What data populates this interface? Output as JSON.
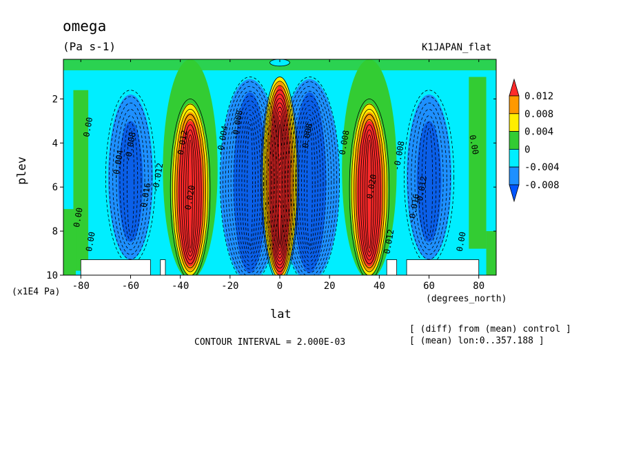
{
  "header": {
    "title": "omega",
    "units": "(Pa s-1)",
    "experiment": "K1JAPAN_flat"
  },
  "footer": {
    "contour_interval": "CONTOUR INTERVAL = 2.000E-03",
    "note1": "[ (diff) from (mean) control ]",
    "note2": "[ (mean) lon:0..357.188 ]"
  },
  "chart_data": {
    "type": "heatmap",
    "title": "omega",
    "units": "(Pa s-1)",
    "xlabel": "lat",
    "xunit": "(degrees_north)",
    "ylabel": "plev",
    "yunit": "(x1E4 Pa)",
    "xlim": [
      -87,
      87
    ],
    "ylim": [
      10,
      0.2
    ],
    "xticks": [
      -80,
      -60,
      -40,
      -20,
      0,
      20,
      40,
      60,
      80
    ],
    "yticks": [
      2,
      4,
      6,
      8,
      10
    ],
    "contour_interval": 0.002,
    "legend": {
      "placement": "right",
      "levels": [
        "0.012",
        "0.008",
        "0.004",
        "0",
        "-0.004",
        "-0.008"
      ],
      "colors": [
        "#ff2a2a",
        "#ff9900",
        "#ffee00",
        "#33cc33",
        "#00eeff",
        "#1e90ff",
        "#0055ff"
      ]
    },
    "colors": {
      "background": "#00eeff",
      "positive_weak": "#33cc33",
      "negative_weak": "#1e90ff",
      "negative_mid": "#0a5fe8",
      "positive_mid": "#ffee00",
      "positive_high": "#ff9900",
      "positive_max": "#ff2a2a"
    },
    "features": [
      {
        "kind": "max",
        "lat": 0,
        "plev_top": 1.5,
        "plev_bottom": 9.5,
        "sign": "positive"
      },
      {
        "kind": "max",
        "lat": -36,
        "plev_top": 2.5,
        "plev_bottom": 9.6,
        "sign": "positive"
      },
      {
        "kind": "max",
        "lat": 36,
        "plev_top": 2.5,
        "plev_bottom": 9.6,
        "sign": "positive"
      },
      {
        "kind": "min",
        "lat": -60,
        "plev_top": 2.0,
        "plev_bottom": 9.0,
        "sign": "negative"
      },
      {
        "kind": "min",
        "lat": 60,
        "plev_top": 2.0,
        "plev_bottom": 9.0,
        "sign": "negative"
      },
      {
        "kind": "min",
        "lat": -12,
        "plev_top": 1.5,
        "plev_bottom": 9.8,
        "sign": "negative"
      },
      {
        "kind": "min",
        "lat": 12,
        "plev_top": 1.5,
        "plev_bottom": 9.8,
        "sign": "negative"
      }
    ],
    "masked_regions": [
      {
        "lat_from": -80,
        "lat_to": -52,
        "plev_from": 9.3,
        "plev_to": 10
      },
      {
        "lat_from": -48,
        "lat_to": -46,
        "plev_from": 9.3,
        "plev_to": 10
      },
      {
        "lat_from": 43,
        "lat_to": 47,
        "plev_from": 9.3,
        "plev_to": 10
      },
      {
        "lat_from": 51,
        "lat_to": 80,
        "plev_from": 9.3,
        "plev_to": 10
      }
    ],
    "contour_labels": [
      {
        "text": "0.00",
        "lat": -76,
        "plev": 3.3,
        "rot": -80
      },
      {
        "text": "0.00",
        "lat": -80,
        "plev": 7.4,
        "rot": -80
      },
      {
        "text": "0.00",
        "lat": -75,
        "plev": 8.5,
        "rot": -80
      },
      {
        "text": "-0.004",
        "lat": -64,
        "plev": 5.0,
        "rot": -80
      },
      {
        "text": "-0.008",
        "lat": -59,
        "plev": 4.2,
        "rot": -80
      },
      {
        "text": "-0.016",
        "lat": -53,
        "plev": 6.5,
        "rot": -80
      },
      {
        "text": "-0.012",
        "lat": -48,
        "plev": 5.6,
        "rot": -80
      },
      {
        "text": "0.012",
        "lat": -38,
        "plev": 4.0,
        "rot": -80
      },
      {
        "text": "0.020",
        "lat": -35,
        "plev": 6.5,
        "rot": -80
      },
      {
        "text": "-0.004",
        "lat": -22,
        "plev": 3.9,
        "rot": -80
      },
      {
        "text": "-0.008",
        "lat": -16,
        "plev": 3.2,
        "rot": -80
      },
      {
        "text": "-0.008",
        "lat": 12,
        "plev": 3.8,
        "rot": -80
      },
      {
        "text": "0.008",
        "lat": 27,
        "plev": 4.0,
        "rot": -80
      },
      {
        "text": "0.020",
        "lat": 38,
        "plev": 6.0,
        "rot": -80
      },
      {
        "text": "0.012",
        "lat": 45,
        "plev": 8.5,
        "rot": -80
      },
      {
        "text": "-0.008",
        "lat": 49,
        "plev": 4.6,
        "rot": -80
      },
      {
        "text": "-0.016",
        "lat": 55,
        "plev": 7.0,
        "rot": -80
      },
      {
        "text": "-0.012",
        "lat": 58,
        "plev": 6.2,
        "rot": -80
      },
      {
        "text": "0.00",
        "lat": 77,
        "plev": 4.1,
        "rot": 80
      },
      {
        "text": "0.00",
        "lat": 74,
        "plev": 8.5,
        "rot": -80
      }
    ]
  }
}
